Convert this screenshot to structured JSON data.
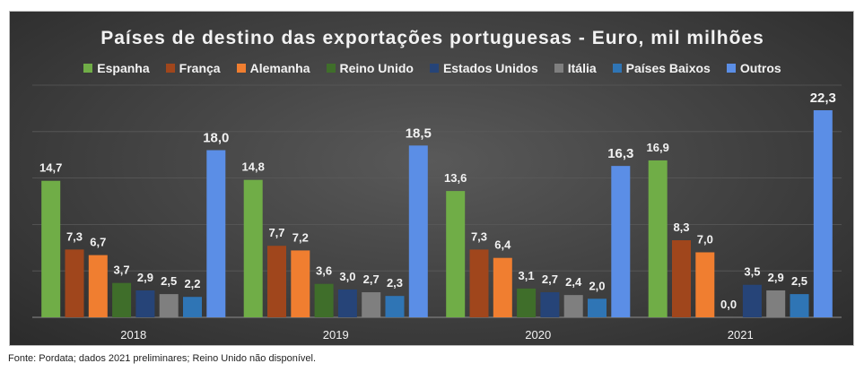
{
  "title": "Países de destino das exportações portuguesas - Euro, mil milhões",
  "source": "Fonte: Pordata; dados 2021 preliminares; Reino Unido não disponível.",
  "colors": {
    "Espanha": "#70ad47",
    "França": "#a0461c",
    "Alemanha": "#f07e30",
    "Reino Unido": "#3f6e2a",
    "Estados Unidos": "#264478",
    "Itália": "#7f7f7f",
    "Países Baixos": "#2f75b5",
    "Outros": "#5b8ee6"
  },
  "chart_data": {
    "type": "bar",
    "title": "Países de destino das exportações portuguesas - Euro, mil milhões",
    "categories": [
      "2018",
      "2019",
      "2020",
      "2021"
    ],
    "series": [
      {
        "name": "Espanha",
        "values": [
          14.7,
          14.8,
          13.6,
          16.9
        ],
        "labels": [
          "14,7",
          "14,8",
          "13,6",
          "16,9"
        ]
      },
      {
        "name": "França",
        "values": [
          7.3,
          7.7,
          7.3,
          8.3
        ],
        "labels": [
          "7,3",
          "7,7",
          "7,3",
          "8,3"
        ]
      },
      {
        "name": "Alemanha",
        "values": [
          6.7,
          7.2,
          6.4,
          7.0
        ],
        "labels": [
          "6,7",
          "7,2",
          "6,4",
          "7,0"
        ]
      },
      {
        "name": "Reino Unido",
        "values": [
          3.7,
          3.6,
          3.1,
          0.0
        ],
        "labels": [
          "3,7",
          "3,6",
          "3,1",
          "0,0"
        ]
      },
      {
        "name": "Estados Unidos",
        "values": [
          2.9,
          3.0,
          2.7,
          3.5
        ],
        "labels": [
          "2,9",
          "3,0",
          "2,7",
          "3,5"
        ]
      },
      {
        "name": "Itália",
        "values": [
          2.5,
          2.7,
          2.4,
          2.9
        ],
        "labels": [
          "2,5",
          "2,7",
          "2,4",
          "2,9"
        ]
      },
      {
        "name": "Países Baixos",
        "values": [
          2.2,
          2.3,
          2.0,
          2.5
        ],
        "labels": [
          "2,2",
          "2,3",
          "2,0",
          "2,5"
        ]
      },
      {
        "name": "Outros",
        "values": [
          18.0,
          18.5,
          16.3,
          22.3
        ],
        "labels": [
          "18,0",
          "18,5",
          "16,3",
          "22,3"
        ]
      }
    ],
    "ylim": [
      0,
      25
    ],
    "grid": true,
    "legend_position": "top"
  }
}
